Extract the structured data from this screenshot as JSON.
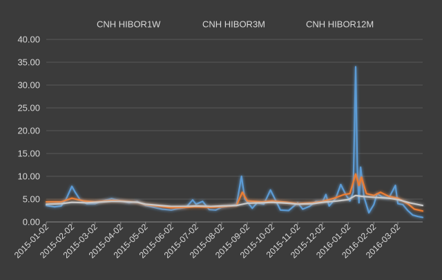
{
  "chart_data": {
    "type": "line",
    "title": "",
    "xlabel": "",
    "ylabel": "",
    "x_range": [
      "2015-01-02",
      "2016-04-01"
    ],
    "ylim": [
      0,
      40
    ],
    "yticks": [
      "0.00",
      "5.00",
      "10.00",
      "15.00",
      "20.00",
      "25.00",
      "30.00",
      "35.00",
      "40.00"
    ],
    "xticks": [
      "2015-01-02",
      "2015-02-02",
      "2015-03-02",
      "2015-04-02",
      "2015-05-02",
      "2015-06-02",
      "2015-07-02",
      "2015-08-02",
      "2015-09-02",
      "2015-10-02",
      "2015-11-02",
      "2015-12-02",
      "2016-01-02",
      "2016-02-02",
      "2016-03-02"
    ],
    "grid": true,
    "legend_position": "top",
    "series": [
      {
        "name": "CNH HIBOR1W",
        "color": "#5b9bd5",
        "points": [
          [
            "2015-01-02",
            3.6
          ],
          [
            "2015-01-12",
            3.3
          ],
          [
            "2015-01-20",
            3.5
          ],
          [
            "2015-01-26",
            5.0
          ],
          [
            "2015-02-02",
            7.8
          ],
          [
            "2015-02-06",
            6.5
          ],
          [
            "2015-02-12",
            4.8
          ],
          [
            "2015-02-20",
            4.0
          ],
          [
            "2015-03-02",
            4.0
          ],
          [
            "2015-03-12",
            4.6
          ],
          [
            "2015-03-22",
            5.1
          ],
          [
            "2015-04-02",
            4.6
          ],
          [
            "2015-04-12",
            4.2
          ],
          [
            "2015-04-22",
            4.5
          ],
          [
            "2015-05-02",
            3.6
          ],
          [
            "2015-05-12",
            3.2
          ],
          [
            "2015-05-22",
            2.8
          ],
          [
            "2015-06-02",
            2.6
          ],
          [
            "2015-06-10",
            2.9
          ],
          [
            "2015-06-20",
            3.2
          ],
          [
            "2015-06-28",
            4.8
          ],
          [
            "2015-07-02",
            3.9
          ],
          [
            "2015-07-10",
            4.5
          ],
          [
            "2015-07-18",
            2.7
          ],
          [
            "2015-07-26",
            2.6
          ],
          [
            "2015-08-02",
            3.2
          ],
          [
            "2015-08-12",
            3.5
          ],
          [
            "2015-08-20",
            3.8
          ],
          [
            "2015-08-26",
            10.0
          ],
          [
            "2015-08-30",
            5.0
          ],
          [
            "2015-09-02",
            4.4
          ],
          [
            "2015-09-08",
            3.0
          ],
          [
            "2015-09-14",
            4.2
          ],
          [
            "2015-09-22",
            3.9
          ],
          [
            "2015-09-30",
            7.0
          ],
          [
            "2015-10-06",
            4.8
          ],
          [
            "2015-10-12",
            2.6
          ],
          [
            "2015-10-22",
            2.5
          ],
          [
            "2015-11-02",
            4.2
          ],
          [
            "2015-11-08",
            2.8
          ],
          [
            "2015-11-16",
            3.4
          ],
          [
            "2015-11-24",
            4.5
          ],
          [
            "2015-12-02",
            4.4
          ],
          [
            "2015-12-06",
            6.0
          ],
          [
            "2015-12-10",
            3.5
          ],
          [
            "2015-12-18",
            5.2
          ],
          [
            "2015-12-24",
            8.2
          ],
          [
            "2015-12-30",
            6.0
          ],
          [
            "2016-01-04",
            4.6
          ],
          [
            "2016-01-08",
            6.5
          ],
          [
            "2016-01-11",
            34.0
          ],
          [
            "2016-01-13",
            11.5
          ],
          [
            "2016-01-15",
            4.2
          ],
          [
            "2016-01-17",
            12.0
          ],
          [
            "2016-01-21",
            5.5
          ],
          [
            "2016-01-27",
            2.0
          ],
          [
            "2016-02-02",
            3.8
          ],
          [
            "2016-02-06",
            6.2
          ],
          [
            "2016-02-12",
            5.5
          ],
          [
            "2016-02-20",
            5.2
          ],
          [
            "2016-02-28",
            8.0
          ],
          [
            "2016-03-02",
            4.0
          ],
          [
            "2016-03-08",
            3.8
          ],
          [
            "2016-03-14",
            2.5
          ],
          [
            "2016-03-20",
            1.5
          ],
          [
            "2016-03-26",
            1.2
          ],
          [
            "2016-04-01",
            1.0
          ]
        ]
      },
      {
        "name": "CNH HIBOR3M",
        "color": "#ed7d31",
        "points": [
          [
            "2015-01-02",
            4.4
          ],
          [
            "2015-01-20",
            4.4
          ],
          [
            "2015-02-02",
            5.2
          ],
          [
            "2015-02-16",
            4.6
          ],
          [
            "2015-03-02",
            4.4
          ],
          [
            "2015-03-22",
            4.7
          ],
          [
            "2015-04-02",
            4.6
          ],
          [
            "2015-04-22",
            4.3
          ],
          [
            "2015-05-02",
            3.8
          ],
          [
            "2015-05-20",
            3.4
          ],
          [
            "2015-06-02",
            3.1
          ],
          [
            "2015-06-20",
            3.2
          ],
          [
            "2015-07-02",
            3.3
          ],
          [
            "2015-07-20",
            3.2
          ],
          [
            "2015-08-02",
            3.3
          ],
          [
            "2015-08-20",
            3.6
          ],
          [
            "2015-08-27",
            6.5
          ],
          [
            "2015-09-02",
            4.6
          ],
          [
            "2015-09-20",
            4.4
          ],
          [
            "2015-10-02",
            4.6
          ],
          [
            "2015-10-20",
            4.3
          ],
          [
            "2015-11-02",
            4.0
          ],
          [
            "2015-11-20",
            4.2
          ],
          [
            "2015-12-02",
            4.5
          ],
          [
            "2015-12-16",
            5.2
          ],
          [
            "2015-12-28",
            6.0
          ],
          [
            "2016-01-04",
            6.2
          ],
          [
            "2016-01-11",
            10.5
          ],
          [
            "2016-01-15",
            8.0
          ],
          [
            "2016-01-18",
            9.8
          ],
          [
            "2016-01-24",
            6.2
          ],
          [
            "2016-02-02",
            5.8
          ],
          [
            "2016-02-10",
            6.5
          ],
          [
            "2016-02-20",
            5.6
          ],
          [
            "2016-03-02",
            5.2
          ],
          [
            "2016-03-14",
            4.0
          ],
          [
            "2016-03-22",
            2.8
          ],
          [
            "2016-04-01",
            2.4
          ]
        ]
      },
      {
        "name": "CNH HIBOR12M",
        "color": "#c9c9c9",
        "points": [
          [
            "2015-01-02",
            3.9
          ],
          [
            "2015-01-20",
            4.0
          ],
          [
            "2015-02-02",
            4.3
          ],
          [
            "2015-02-20",
            4.2
          ],
          [
            "2015-03-02",
            4.3
          ],
          [
            "2015-03-22",
            4.5
          ],
          [
            "2015-04-02",
            4.5
          ],
          [
            "2015-04-22",
            4.3
          ],
          [
            "2015-05-02",
            3.9
          ],
          [
            "2015-05-20",
            3.6
          ],
          [
            "2015-06-02",
            3.4
          ],
          [
            "2015-06-20",
            3.4
          ],
          [
            "2015-07-02",
            3.5
          ],
          [
            "2015-07-20",
            3.4
          ],
          [
            "2015-08-02",
            3.5
          ],
          [
            "2015-08-20",
            3.6
          ],
          [
            "2015-09-02",
            4.1
          ],
          [
            "2015-09-20",
            4.2
          ],
          [
            "2015-10-02",
            4.3
          ],
          [
            "2015-10-20",
            4.1
          ],
          [
            "2015-11-02",
            3.9
          ],
          [
            "2015-11-20",
            4.0
          ],
          [
            "2015-12-02",
            4.3
          ],
          [
            "2015-12-20",
            4.6
          ],
          [
            "2016-01-02",
            4.9
          ],
          [
            "2016-01-11",
            5.8
          ],
          [
            "2016-01-18",
            5.6
          ],
          [
            "2016-02-02",
            5.4
          ],
          [
            "2016-02-20",
            5.2
          ],
          [
            "2016-03-02",
            4.9
          ],
          [
            "2016-03-16",
            4.2
          ],
          [
            "2016-04-01",
            3.6
          ]
        ]
      }
    ]
  }
}
